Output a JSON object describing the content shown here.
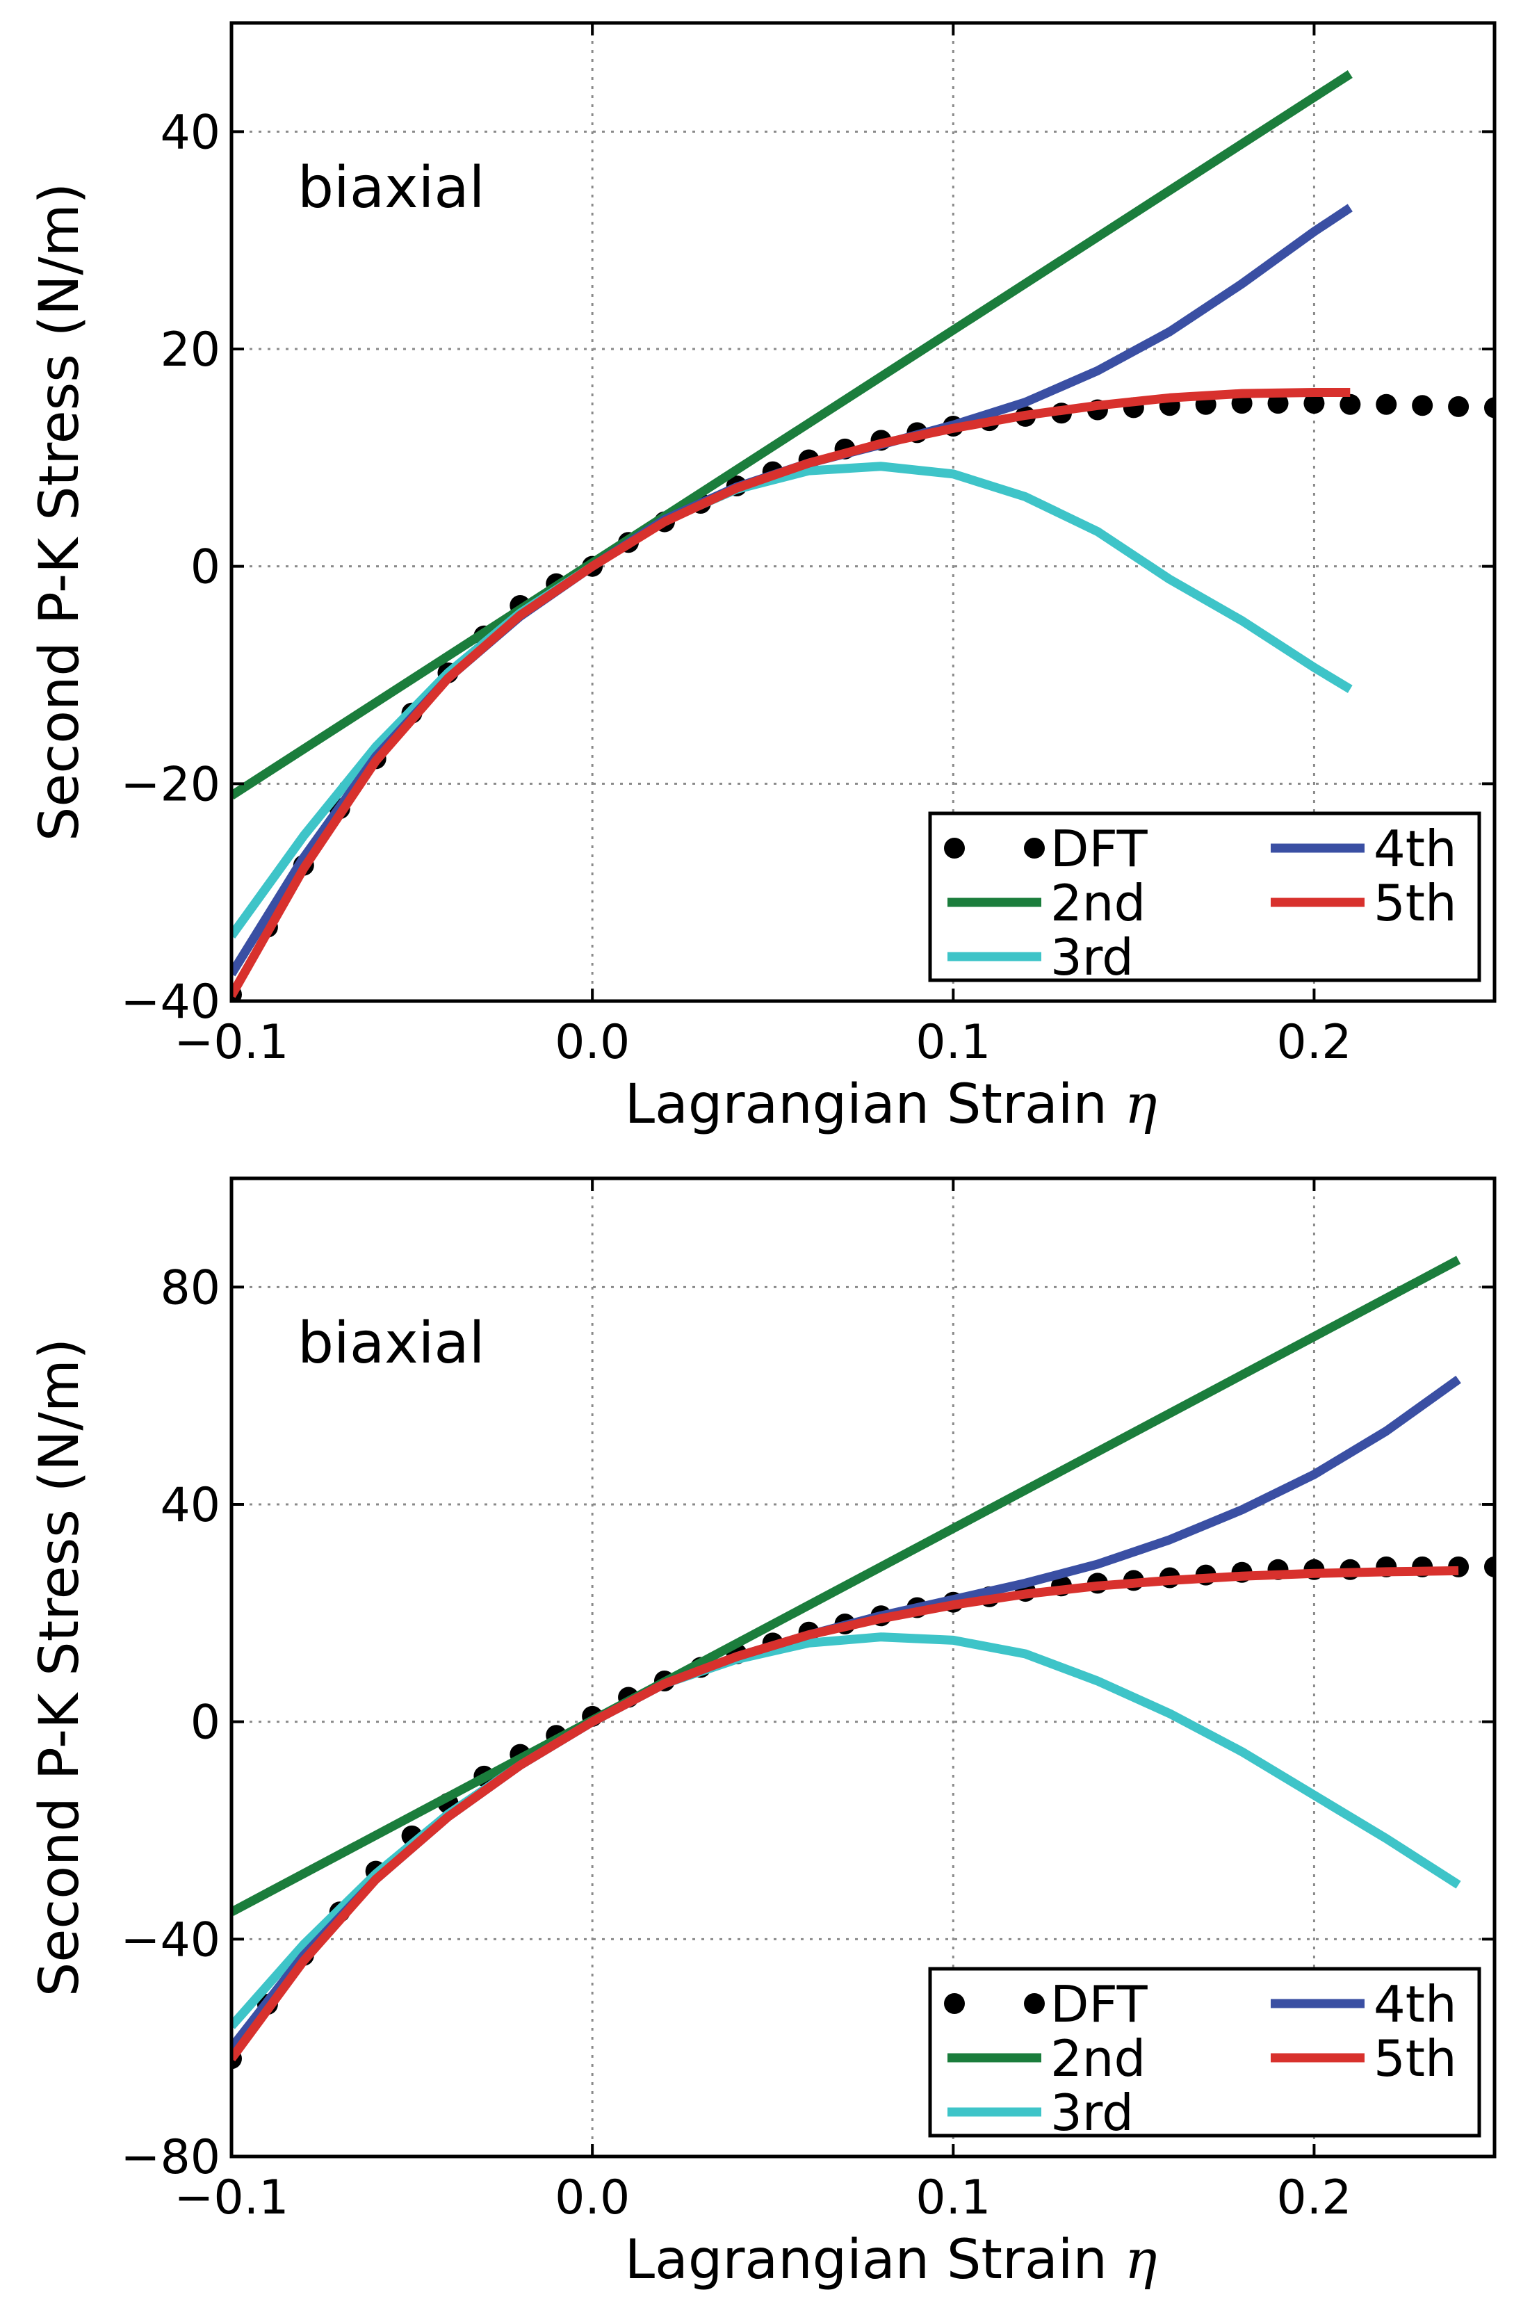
{
  "chart_data": [
    {
      "type": "line",
      "annotation": "biaxial",
      "xlabel": "Lagrangian Strain",
      "xlabel_symbol": "η",
      "ylabel": "Second P-K Stress (N/m)",
      "xlim": [
        -0.1,
        0.25
      ],
      "ylim": [
        -40,
        50
      ],
      "xticks": [
        -0.1,
        0.0,
        0.1,
        0.2
      ],
      "xtick_labels": [
        "−0.1",
        "0.0",
        "0.1",
        "0.2"
      ],
      "yticks": [
        -40,
        -20,
        0,
        20,
        40
      ],
      "ytick_labels": [
        "−40",
        "−20",
        "0",
        "20",
        "40"
      ],
      "grid": true,
      "legend_position": "lower-right",
      "legend": [
        "DFT",
        "2nd",
        "3rd",
        "4th",
        "5th"
      ],
      "series": [
        {
          "name": "DFT",
          "style": "dots",
          "color": "#000000",
          "x": [
            -0.1,
            -0.09,
            -0.08,
            -0.07,
            -0.06,
            -0.05,
            -0.04,
            -0.03,
            -0.02,
            -0.01,
            0.0,
            0.01,
            0.02,
            0.03,
            0.04,
            0.05,
            0.06,
            0.07,
            0.08,
            0.09,
            0.1,
            0.11,
            0.12,
            0.13,
            0.14,
            0.15,
            0.16,
            0.17,
            0.18,
            0.19,
            0.2,
            0.21,
            0.22,
            0.23,
            0.24,
            0.25
          ],
          "y": [
            -39.4,
            -33.2,
            -27.5,
            -22.3,
            -17.7,
            -13.5,
            -9.8,
            -6.4,
            -3.6,
            -1.6,
            0.0,
            2.2,
            4.1,
            5.8,
            7.4,
            8.7,
            9.8,
            10.8,
            11.6,
            12.3,
            12.9,
            13.4,
            13.8,
            14.1,
            14.4,
            14.6,
            14.8,
            14.9,
            15.0,
            15.0,
            15.0,
            14.9,
            14.9,
            14.8,
            14.7,
            14.6
          ]
        },
        {
          "name": "2nd",
          "style": "line",
          "color": "#1b7d3c",
          "x": [
            -0.1,
            0.21
          ],
          "y": [
            -21.1,
            45.3
          ]
        },
        {
          "name": "3rd",
          "style": "line",
          "color": "#3ec4c8",
          "x": [
            -0.1,
            -0.08,
            -0.06,
            -0.04,
            -0.02,
            0.0,
            0.02,
            0.04,
            0.06,
            0.08,
            0.1,
            0.12,
            0.14,
            0.16,
            0.18,
            0.2,
            0.21
          ],
          "y": [
            -34.0,
            -24.8,
            -16.6,
            -9.8,
            -4.3,
            0.0,
            4.2,
            7.1,
            8.8,
            9.2,
            8.5,
            6.4,
            3.2,
            -1.2,
            -5.0,
            -9.3,
            -11.3
          ]
        },
        {
          "name": "4th",
          "style": "line",
          "color": "#3a4fa3",
          "x": [
            -0.1,
            -0.08,
            -0.06,
            -0.04,
            -0.02,
            0.0,
            0.02,
            0.04,
            0.06,
            0.08,
            0.1,
            0.12,
            0.14,
            0.16,
            0.18,
            0.2,
            0.21
          ],
          "y": [
            -37.5,
            -26.8,
            -17.5,
            -10.3,
            -4.6,
            0.0,
            4.3,
            7.3,
            9.5,
            11.2,
            13.0,
            15.1,
            18.0,
            21.6,
            26.0,
            30.8,
            33.0
          ]
        },
        {
          "name": "5th",
          "style": "line",
          "color": "#d8312d",
          "x": [
            -0.1,
            -0.08,
            -0.06,
            -0.04,
            -0.02,
            0.0,
            0.02,
            0.04,
            0.06,
            0.08,
            0.1,
            0.12,
            0.14,
            0.16,
            0.18,
            0.2,
            0.21
          ],
          "y": [
            -39.5,
            -27.8,
            -17.9,
            -10.3,
            -4.5,
            0.0,
            4.1,
            7.2,
            9.5,
            11.3,
            12.7,
            13.9,
            14.8,
            15.5,
            15.9,
            16.0,
            16.0
          ]
        }
      ]
    },
    {
      "type": "line",
      "annotation": "biaxial",
      "xlabel": "Lagrangian Strain",
      "xlabel_symbol": "η",
      "ylabel": "Second P-K Stress (N/m)",
      "xlim": [
        -0.1,
        0.25
      ],
      "ylim": [
        -80,
        100
      ],
      "xticks": [
        -0.1,
        0.0,
        0.1,
        0.2
      ],
      "xtick_labels": [
        "−0.1",
        "0.0",
        "0.1",
        "0.2"
      ],
      "yticks": [
        -80,
        -40,
        0,
        40,
        80
      ],
      "ytick_labels": [
        "−80",
        "−40",
        "0",
        "40",
        "80"
      ],
      "grid": true,
      "legend_position": "lower-right",
      "legend": [
        "DFT",
        "2nd",
        "3rd",
        "4th",
        "5th"
      ],
      "series": [
        {
          "name": "DFT",
          "style": "dots",
          "color": "#000000",
          "x": [
            -0.1,
            -0.09,
            -0.08,
            -0.07,
            -0.06,
            -0.05,
            -0.04,
            -0.03,
            -0.02,
            -0.01,
            0.0,
            0.01,
            0.02,
            0.03,
            0.04,
            0.05,
            0.06,
            0.07,
            0.08,
            0.09,
            0.1,
            0.11,
            0.12,
            0.13,
            0.14,
            0.15,
            0.16,
            0.17,
            0.18,
            0.19,
            0.2,
            0.21,
            0.22,
            0.23,
            0.24,
            0.25
          ],
          "y": [
            -62.0,
            -52.0,
            -43.0,
            -35.0,
            -27.5,
            -21.0,
            -15.0,
            -10.0,
            -6.0,
            -2.5,
            1.0,
            4.5,
            7.5,
            10.0,
            12.5,
            14.5,
            16.5,
            18.0,
            19.5,
            21.0,
            22.0,
            23.0,
            24.0,
            25.0,
            25.5,
            26.0,
            26.5,
            27.0,
            27.5,
            28.0,
            28.0,
            28.0,
            28.5,
            28.5,
            28.5,
            28.5
          ]
        },
        {
          "name": "2nd",
          "style": "line",
          "color": "#1b7d3c",
          "x": [
            -0.1,
            0.24
          ],
          "y": [
            -35.0,
            85.0
          ]
        },
        {
          "name": "3rd",
          "style": "line",
          "color": "#3ec4c8",
          "x": [
            -0.1,
            -0.08,
            -0.06,
            -0.04,
            -0.02,
            0.0,
            0.02,
            0.04,
            0.06,
            0.08,
            0.1,
            0.12,
            0.14,
            0.16,
            0.18,
            0.2,
            0.22,
            0.24
          ],
          "y": [
            -56.0,
            -41.0,
            -28.0,
            -17.0,
            -8.0,
            0.0,
            7.0,
            11.5,
            14.5,
            15.6,
            15.0,
            12.5,
            7.5,
            1.5,
            -5.5,
            -13.5,
            -21.5,
            -30.0
          ]
        },
        {
          "name": "4th",
          "style": "line",
          "color": "#3a4fa3",
          "x": [
            -0.1,
            -0.08,
            -0.06,
            -0.04,
            -0.02,
            0.0,
            0.02,
            0.04,
            0.06,
            0.08,
            0.1,
            0.12,
            0.14,
            0.16,
            0.18,
            0.2,
            0.22,
            0.24
          ],
          "y": [
            -60.0,
            -43.0,
            -29.0,
            -17.5,
            -8.0,
            0.0,
            7.0,
            12.0,
            16.0,
            19.5,
            22.5,
            25.5,
            29.0,
            33.5,
            39.0,
            45.5,
            53.5,
            63.0
          ]
        },
        {
          "name": "5th",
          "style": "line",
          "color": "#d8312d",
          "x": [
            -0.1,
            -0.08,
            -0.06,
            -0.04,
            -0.02,
            0.0,
            0.02,
            0.04,
            0.06,
            0.08,
            0.1,
            0.12,
            0.14,
            0.16,
            0.18,
            0.2,
            0.22,
            0.24
          ],
          "y": [
            -62.0,
            -44.0,
            -29.0,
            -17.5,
            -8.0,
            0.0,
            7.0,
            12.0,
            16.0,
            19.0,
            21.5,
            23.5,
            25.0,
            26.0,
            26.8,
            27.3,
            27.6,
            27.8
          ]
        }
      ]
    }
  ]
}
